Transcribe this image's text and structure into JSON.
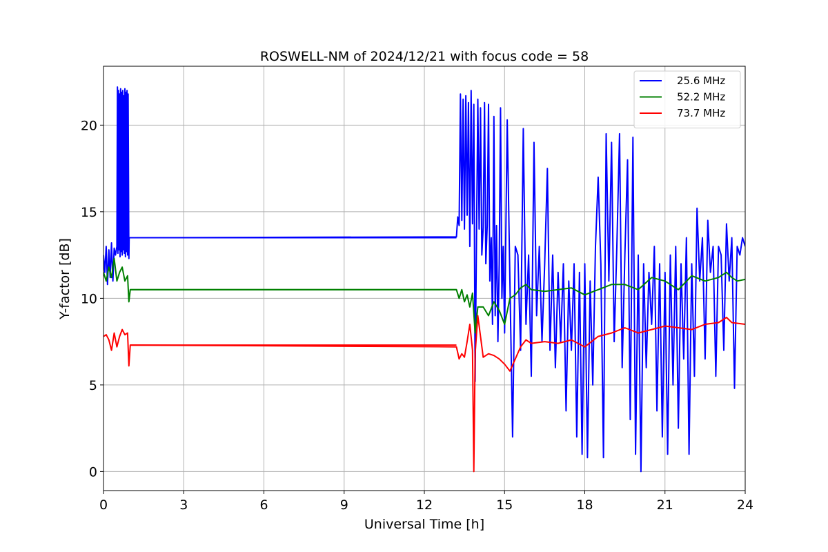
{
  "chart_data": {
    "type": "line",
    "title": "ROSWELL-NM of 2024/12/21 with focus code = 58",
    "xlabel": "Universal Time [h]",
    "ylabel": "Y-factor [dB]",
    "xlim": [
      0,
      24
    ],
    "ylim": [
      -1.1,
      23.4
    ],
    "xticks": [
      0,
      3,
      6,
      9,
      12,
      15,
      18,
      21,
      24
    ],
    "yticks": [
      0,
      5,
      10,
      15,
      20
    ],
    "grid": true,
    "legend_position": "top-right",
    "series": [
      {
        "name": "25.6 MHz",
        "color": "#0000ff",
        "x": [
          0.0,
          0.05,
          0.1,
          0.15,
          0.2,
          0.25,
          0.3,
          0.35,
          0.4,
          0.45,
          0.5,
          0.52,
          0.54,
          0.56,
          0.58,
          0.6,
          0.62,
          0.64,
          0.66,
          0.68,
          0.7,
          0.72,
          0.74,
          0.76,
          0.78,
          0.8,
          0.82,
          0.84,
          0.86,
          0.88,
          0.9,
          0.92,
          0.95,
          0.96,
          1.0,
          13.2,
          13.25,
          13.3,
          13.35,
          13.4,
          13.45,
          13.5,
          13.55,
          13.6,
          13.65,
          13.7,
          13.75,
          13.8,
          13.85,
          13.9,
          13.95,
          14.0,
          14.05,
          14.1,
          14.15,
          14.2,
          14.25,
          14.3,
          14.35,
          14.4,
          14.45,
          14.5,
          14.55,
          14.6,
          14.65,
          14.7,
          14.75,
          14.8,
          14.85,
          14.9,
          14.95,
          15.0,
          15.1,
          15.2,
          15.3,
          15.4,
          15.5,
          15.6,
          15.7,
          15.8,
          15.9,
          16.0,
          16.1,
          16.2,
          16.3,
          16.4,
          16.5,
          16.6,
          16.7,
          16.8,
          16.9,
          17.0,
          17.1,
          17.2,
          17.3,
          17.4,
          17.5,
          17.6,
          17.7,
          17.8,
          17.9,
          18.0,
          18.1,
          18.2,
          18.3,
          18.4,
          18.5,
          18.6,
          18.7,
          18.8,
          18.9,
          19.0,
          19.1,
          19.2,
          19.3,
          19.4,
          19.5,
          19.6,
          19.7,
          19.8,
          19.9,
          20.0,
          20.1,
          20.2,
          20.3,
          20.4,
          20.5,
          20.6,
          20.7,
          20.8,
          20.9,
          21.0,
          21.1,
          21.2,
          21.3,
          21.4,
          21.5,
          21.6,
          21.7,
          21.8,
          21.9,
          22.0,
          22.1,
          22.2,
          22.3,
          22.4,
          22.5,
          22.6,
          22.7,
          22.8,
          22.9,
          23.0,
          23.1,
          23.2,
          23.3,
          23.4,
          23.5,
          23.6,
          23.7,
          23.8,
          23.9,
          24.0
        ],
        "y": [
          12.5,
          11.5,
          13.0,
          10.8,
          12.8,
          11.2,
          13.2,
          11.0,
          12.9,
          12.5,
          13.0,
          22.2,
          12.6,
          22.0,
          12.8,
          21.8,
          12.4,
          22.1,
          12.7,
          21.9,
          12.5,
          22.0,
          12.8,
          21.7,
          12.6,
          22.1,
          12.4,
          21.9,
          12.7,
          22.0,
          12.5,
          21.8,
          12.3,
          13.5,
          13.5,
          13.55,
          14.7,
          14.2,
          21.8,
          14.5,
          21.5,
          14.0,
          21.7,
          14.8,
          21.3,
          13.0,
          22.0,
          14.3,
          21.2,
          5.2,
          13.5,
          21.5,
          14.0,
          21.0,
          12.5,
          14.1,
          21.3,
          12.0,
          14.2,
          21.2,
          11.0,
          13.5,
          8.5,
          20.5,
          9.0,
          14.2,
          7.5,
          12.0,
          21.0,
          10.0,
          13.0,
          8.0,
          20.3,
          11.0,
          2.0,
          13.0,
          12.5,
          7.0,
          19.8,
          8.5,
          12.5,
          5.5,
          19.0,
          9.0,
          13.0,
          7.5,
          12.0,
          17.5,
          7.0,
          12.5,
          6.0,
          11.5,
          7.5,
          12.0,
          3.5,
          11.0,
          7.0,
          12.0,
          2.0,
          11.5,
          1.0,
          12.0,
          0.8,
          11.0,
          5.0,
          13.0,
          17.0,
          12.0,
          0.8,
          19.5,
          11.0,
          19.0,
          7.5,
          13.0,
          19.5,
          6.0,
          12.5,
          18.0,
          3.0,
          19.3,
          1.0,
          12.5,
          0.0,
          12.0,
          6.0,
          11.5,
          8.5,
          13.0,
          3.5,
          12.0,
          2.0,
          11.5,
          1.0,
          12.5,
          5.0,
          13.0,
          2.5,
          12.0,
          6.5,
          13.5,
          1.0,
          12.0,
          5.5,
          15.2,
          11.0,
          13.5,
          6.5,
          14.5,
          11.5,
          13.0,
          5.5,
          13.0,
          12.5,
          7.0,
          14.3,
          11.0,
          13.5,
          4.8,
          13.0,
          12.5,
          13.5,
          13.0
        ],
        "flat_segment": {
          "from": 1.0,
          "to": 13.2,
          "value": 13.5
        }
      },
      {
        "name": "52.2 MHz",
        "color": "#008000",
        "x": [
          0.0,
          0.1,
          0.2,
          0.3,
          0.4,
          0.5,
          0.6,
          0.7,
          0.8,
          0.9,
          0.95,
          1.0,
          13.2,
          13.3,
          13.4,
          13.5,
          13.6,
          13.7,
          13.8,
          13.9,
          14.0,
          14.2,
          14.4,
          14.6,
          14.8,
          15.0,
          15.2,
          15.4,
          15.6,
          15.8,
          16.0,
          16.5,
          17.0,
          17.5,
          18.0,
          18.5,
          19.0,
          19.5,
          20.0,
          20.5,
          21.0,
          21.5,
          22.0,
          22.5,
          23.0,
          23.3,
          23.5,
          23.7,
          24.0
        ],
        "y": [
          11.5,
          11.0,
          11.8,
          11.2,
          12.3,
          11.0,
          11.5,
          11.8,
          11.0,
          11.3,
          9.8,
          10.5,
          10.5,
          10.0,
          10.5,
          9.8,
          10.2,
          9.5,
          10.3,
          8.0,
          9.5,
          9.5,
          9.0,
          9.8,
          9.3,
          8.5,
          10.0,
          10.2,
          10.6,
          10.8,
          10.5,
          10.4,
          10.5,
          10.6,
          10.2,
          10.5,
          10.8,
          10.8,
          10.5,
          11.2,
          11.0,
          10.5,
          11.3,
          11.0,
          11.2,
          11.5,
          11.2,
          11.0,
          11.1
        ],
        "flat_segment": {
          "from": 1.0,
          "to": 13.2,
          "value": 10.5
        }
      },
      {
        "name": "73.7 MHz",
        "color": "#ff0000",
        "x": [
          0.0,
          0.1,
          0.2,
          0.3,
          0.4,
          0.5,
          0.6,
          0.7,
          0.8,
          0.9,
          0.95,
          1.0,
          13.2,
          13.3,
          13.4,
          13.5,
          13.6,
          13.7,
          13.8,
          13.85,
          13.9,
          14.0,
          14.2,
          14.4,
          14.6,
          14.8,
          15.0,
          15.2,
          15.4,
          15.6,
          15.8,
          16.0,
          16.5,
          17.0,
          17.5,
          18.0,
          18.5,
          19.0,
          19.5,
          20.0,
          20.5,
          21.0,
          21.5,
          22.0,
          22.5,
          23.0,
          23.3,
          23.5,
          24.0
        ],
        "y": [
          7.8,
          7.9,
          7.6,
          7.0,
          8.0,
          7.2,
          7.8,
          8.2,
          7.9,
          8.0,
          6.1,
          7.3,
          7.2,
          6.5,
          6.8,
          6.6,
          7.5,
          8.5,
          7.0,
          0.0,
          6.8,
          9.0,
          6.6,
          6.8,
          6.7,
          6.5,
          6.2,
          5.8,
          6.5,
          7.2,
          7.6,
          7.4,
          7.5,
          7.4,
          7.6,
          7.2,
          7.8,
          8.0,
          8.3,
          8.0,
          8.2,
          8.4,
          8.3,
          8.2,
          8.5,
          8.6,
          8.9,
          8.6,
          8.5
        ],
        "flat_segment": {
          "from": 1.0,
          "to": 13.2,
          "value": 7.3
        }
      }
    ]
  }
}
